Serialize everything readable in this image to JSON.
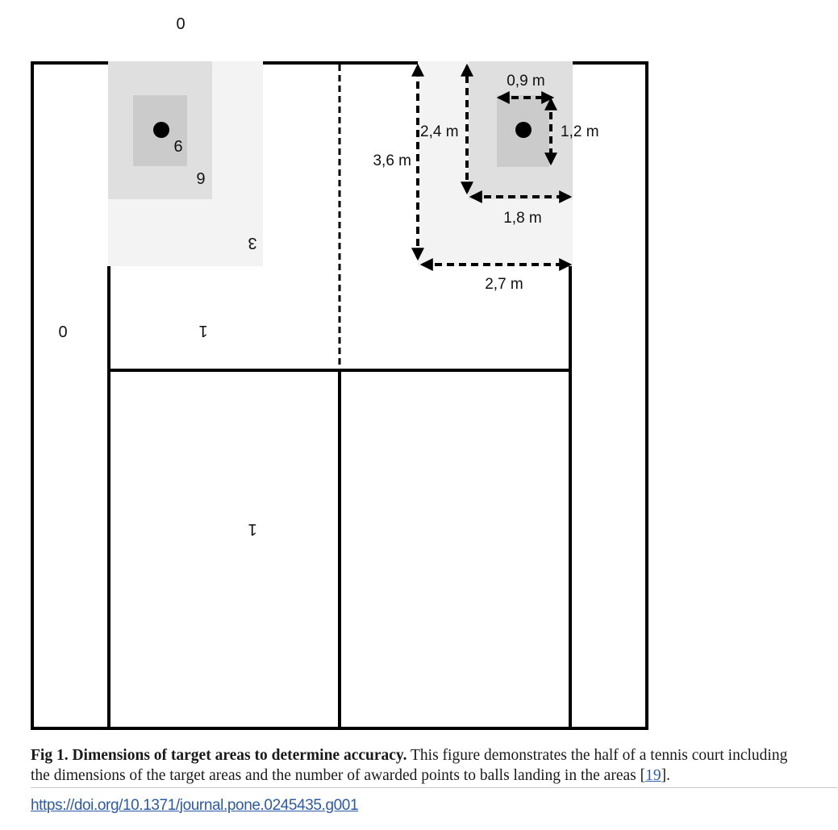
{
  "figure": {
    "zone_points": {
      "outside_top": "0",
      "outside_left": "0",
      "target_inner": "9",
      "target_middle": "6",
      "target_outer": "3",
      "service_box": "1",
      "backcourt": "1"
    },
    "dimensions": {
      "outer_height": "3,6 m",
      "middle_height": "2,4 m",
      "inner_width": "0,9 m",
      "inner_height": "1,2 m",
      "middle_width": "1,8 m",
      "outer_width": "2,7 m"
    },
    "colors": {
      "line": "#000000",
      "target_inner": "#cbcbcb",
      "target_middle": "#dfdfdf",
      "target_outer": "#f3f3f3",
      "marker": "#000000"
    }
  },
  "caption": {
    "number": "Fig 1.",
    "title": "Dimensions of target areas to determine accuracy.",
    "text": "This figure demonstrates the half of a tennis court including the dimensions of the target areas and the number of awarded points to balls landing in the areas [",
    "ref": "19",
    "text_end": "].",
    "doi": "https://doi.org/10.1371/journal.pone.0245435.g001"
  }
}
